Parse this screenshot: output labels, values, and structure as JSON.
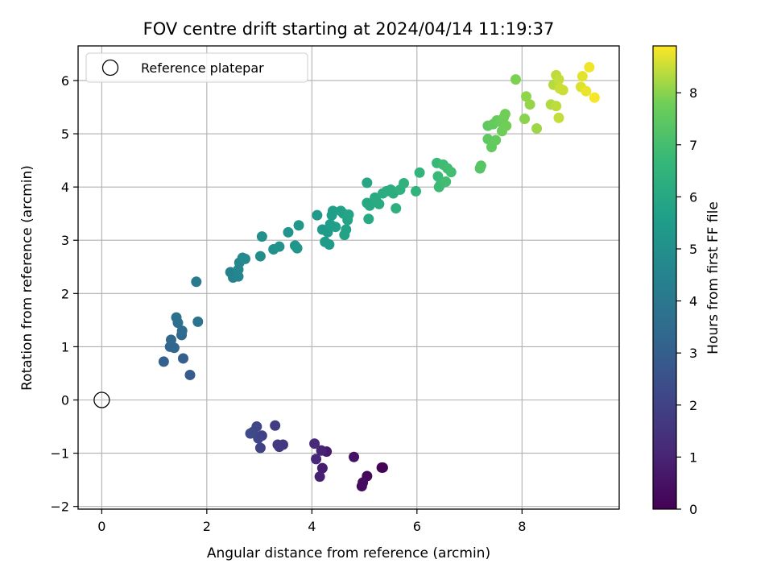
{
  "chart_data": {
    "type": "scatter",
    "title": "FOV centre drift starting at 2024/04/14 11:19:37",
    "xlabel": "Angular distance from reference (arcmin)",
    "ylabel": "Rotation from reference (arcmin)",
    "xlim": [
      -0.45,
      9.85
    ],
    "ylim": [
      -2.05,
      6.65
    ],
    "xticks": [
      0,
      2,
      4,
      6,
      8
    ],
    "yticks": [
      -2,
      -1,
      0,
      1,
      2,
      3,
      4,
      5,
      6
    ],
    "grid": true,
    "colormap": "viridis",
    "colorbar": {
      "label": "Hours from first FF file",
      "range": [
        0,
        8.9
      ],
      "ticks": [
        0,
        1,
        2,
        3,
        4,
        5,
        6,
        7,
        8
      ]
    },
    "legend": {
      "placement": "top-left",
      "entries": [
        "Reference platepar"
      ]
    },
    "reference_point": {
      "x": 0,
      "y": 0
    },
    "points": [
      {
        "x": 5.35,
        "y": -1.27,
        "t": 0.05
      },
      {
        "x": 5.33,
        "y": -1.27,
        "t": 0.1
      },
      {
        "x": 5.05,
        "y": -1.43,
        "t": 0.2
      },
      {
        "x": 4.95,
        "y": -1.62,
        "t": 0.3
      },
      {
        "x": 4.97,
        "y": -1.55,
        "t": 0.35
      },
      {
        "x": 4.8,
        "y": -1.07,
        "t": 0.5
      },
      {
        "x": 4.28,
        "y": -0.97,
        "t": 0.7
      },
      {
        "x": 4.2,
        "y": -1.28,
        "t": 0.8
      },
      {
        "x": 4.15,
        "y": -1.44,
        "t": 0.9
      },
      {
        "x": 4.18,
        "y": -0.95,
        "t": 1.0
      },
      {
        "x": 4.08,
        "y": -1.11,
        "t": 1.1
      },
      {
        "x": 4.05,
        "y": -0.82,
        "t": 1.2
      },
      {
        "x": 3.45,
        "y": -0.84,
        "t": 1.6
      },
      {
        "x": 3.38,
        "y": -0.88,
        "t": 1.7
      },
      {
        "x": 3.35,
        "y": -0.84,
        "t": 1.75
      },
      {
        "x": 3.3,
        "y": -0.48,
        "t": 1.8
      },
      {
        "x": 3.05,
        "y": -0.67,
        "t": 1.9
      },
      {
        "x": 3.02,
        "y": -0.9,
        "t": 2.0
      },
      {
        "x": 2.98,
        "y": -0.72,
        "t": 2.1
      },
      {
        "x": 2.95,
        "y": -0.5,
        "t": 2.15
      },
      {
        "x": 2.88,
        "y": -0.6,
        "t": 2.2
      },
      {
        "x": 2.83,
        "y": -0.63,
        "t": 2.3
      },
      {
        "x": 1.68,
        "y": 0.47,
        "t": 2.9
      },
      {
        "x": 1.55,
        "y": 0.78,
        "t": 3.0
      },
      {
        "x": 1.18,
        "y": 0.72,
        "t": 3.1
      },
      {
        "x": 1.3,
        "y": 1.0,
        "t": 3.2
      },
      {
        "x": 1.38,
        "y": 0.98,
        "t": 3.3
      },
      {
        "x": 1.32,
        "y": 1.13,
        "t": 3.35
      },
      {
        "x": 1.52,
        "y": 1.22,
        "t": 3.4
      },
      {
        "x": 1.53,
        "y": 1.3,
        "t": 3.5
      },
      {
        "x": 1.45,
        "y": 1.45,
        "t": 3.6
      },
      {
        "x": 1.42,
        "y": 1.55,
        "t": 3.7
      },
      {
        "x": 1.83,
        "y": 1.47,
        "t": 3.8
      },
      {
        "x": 1.8,
        "y": 2.22,
        "t": 4.1
      },
      {
        "x": 2.45,
        "y": 2.4,
        "t": 4.4
      },
      {
        "x": 2.5,
        "y": 2.3,
        "t": 4.5
      },
      {
        "x": 2.6,
        "y": 2.32,
        "t": 4.55
      },
      {
        "x": 2.6,
        "y": 2.45,
        "t": 4.6
      },
      {
        "x": 2.62,
        "y": 2.58,
        "t": 4.65
      },
      {
        "x": 2.68,
        "y": 2.67,
        "t": 4.7
      },
      {
        "x": 2.73,
        "y": 2.65,
        "t": 4.75
      },
      {
        "x": 3.02,
        "y": 2.7,
        "t": 4.9
      },
      {
        "x": 3.05,
        "y": 3.07,
        "t": 5.0
      },
      {
        "x": 3.27,
        "y": 2.83,
        "t": 5.05
      },
      {
        "x": 3.38,
        "y": 2.88,
        "t": 5.1
      },
      {
        "x": 3.55,
        "y": 3.15,
        "t": 5.15
      },
      {
        "x": 3.68,
        "y": 2.9,
        "t": 5.2
      },
      {
        "x": 3.72,
        "y": 2.85,
        "t": 5.25
      },
      {
        "x": 3.75,
        "y": 3.28,
        "t": 5.3
      },
      {
        "x": 4.1,
        "y": 3.47,
        "t": 5.35
      },
      {
        "x": 4.2,
        "y": 3.2,
        "t": 5.4
      },
      {
        "x": 4.25,
        "y": 2.97,
        "t": 5.45
      },
      {
        "x": 4.33,
        "y": 2.92,
        "t": 5.5
      },
      {
        "x": 4.3,
        "y": 3.15,
        "t": 5.5
      },
      {
        "x": 4.35,
        "y": 3.3,
        "t": 5.55
      },
      {
        "x": 4.38,
        "y": 3.47,
        "t": 5.6
      },
      {
        "x": 4.4,
        "y": 3.55,
        "t": 5.6
      },
      {
        "x": 4.45,
        "y": 3.25,
        "t": 5.65
      },
      {
        "x": 4.55,
        "y": 3.55,
        "t": 5.7
      },
      {
        "x": 4.6,
        "y": 3.5,
        "t": 5.7
      },
      {
        "x": 4.62,
        "y": 3.1,
        "t": 5.75
      },
      {
        "x": 4.65,
        "y": 3.2,
        "t": 5.75
      },
      {
        "x": 4.68,
        "y": 3.38,
        "t": 5.8
      },
      {
        "x": 4.7,
        "y": 3.48,
        "t": 5.8
      },
      {
        "x": 5.05,
        "y": 4.08,
        "t": 5.9
      },
      {
        "x": 5.05,
        "y": 3.7,
        "t": 5.95
      },
      {
        "x": 5.1,
        "y": 3.65,
        "t": 6.0
      },
      {
        "x": 5.08,
        "y": 3.4,
        "t": 6.0
      },
      {
        "x": 5.2,
        "y": 3.8,
        "t": 6.05
      },
      {
        "x": 5.22,
        "y": 3.75,
        "t": 6.1
      },
      {
        "x": 5.28,
        "y": 3.68,
        "t": 6.1
      },
      {
        "x": 5.35,
        "y": 3.88,
        "t": 6.15
      },
      {
        "x": 5.42,
        "y": 3.92,
        "t": 6.2
      },
      {
        "x": 5.5,
        "y": 3.95,
        "t": 6.2
      },
      {
        "x": 5.55,
        "y": 3.88,
        "t": 6.25
      },
      {
        "x": 5.6,
        "y": 3.6,
        "t": 6.3
      },
      {
        "x": 5.68,
        "y": 3.95,
        "t": 6.35
      },
      {
        "x": 5.75,
        "y": 4.07,
        "t": 6.4
      },
      {
        "x": 5.98,
        "y": 3.92,
        "t": 6.5
      },
      {
        "x": 6.05,
        "y": 4.27,
        "t": 6.55
      },
      {
        "x": 6.38,
        "y": 4.45,
        "t": 6.7
      },
      {
        "x": 6.4,
        "y": 4.2,
        "t": 6.75
      },
      {
        "x": 6.42,
        "y": 4.0,
        "t": 6.8
      },
      {
        "x": 6.45,
        "y": 4.05,
        "t": 6.8
      },
      {
        "x": 6.5,
        "y": 4.42,
        "t": 6.85
      },
      {
        "x": 6.55,
        "y": 4.1,
        "t": 6.9
      },
      {
        "x": 6.58,
        "y": 4.35,
        "t": 6.9
      },
      {
        "x": 6.65,
        "y": 4.28,
        "t": 6.95
      },
      {
        "x": 7.2,
        "y": 4.35,
        "t": 7.3
      },
      {
        "x": 7.22,
        "y": 4.4,
        "t": 7.35
      },
      {
        "x": 7.35,
        "y": 5.15,
        "t": 7.5
      },
      {
        "x": 7.35,
        "y": 4.9,
        "t": 7.5
      },
      {
        "x": 7.42,
        "y": 4.75,
        "t": 7.55
      },
      {
        "x": 7.45,
        "y": 5.18,
        "t": 7.6
      },
      {
        "x": 7.5,
        "y": 4.88,
        "t": 7.6
      },
      {
        "x": 7.52,
        "y": 5.25,
        "t": 7.65
      },
      {
        "x": 7.6,
        "y": 5.22,
        "t": 7.7
      },
      {
        "x": 7.62,
        "y": 5.05,
        "t": 7.75
      },
      {
        "x": 7.65,
        "y": 5.3,
        "t": 7.75
      },
      {
        "x": 7.68,
        "y": 5.37,
        "t": 7.8
      },
      {
        "x": 7.7,
        "y": 5.15,
        "t": 7.8
      },
      {
        "x": 7.88,
        "y": 6.02,
        "t": 7.9
      },
      {
        "x": 8.05,
        "y": 5.28,
        "t": 8.0
      },
      {
        "x": 8.08,
        "y": 5.7,
        "t": 8.05
      },
      {
        "x": 8.15,
        "y": 5.55,
        "t": 8.1
      },
      {
        "x": 8.28,
        "y": 5.1,
        "t": 8.15
      },
      {
        "x": 8.55,
        "y": 5.55,
        "t": 8.3
      },
      {
        "x": 8.6,
        "y": 5.92,
        "t": 8.35
      },
      {
        "x": 8.65,
        "y": 6.1,
        "t": 8.4
      },
      {
        "x": 8.65,
        "y": 5.52,
        "t": 8.4
      },
      {
        "x": 8.7,
        "y": 6.02,
        "t": 8.45
      },
      {
        "x": 8.7,
        "y": 5.3,
        "t": 8.45
      },
      {
        "x": 8.72,
        "y": 5.85,
        "t": 8.5
      },
      {
        "x": 8.78,
        "y": 5.82,
        "t": 8.5
      },
      {
        "x": 9.12,
        "y": 5.88,
        "t": 8.65
      },
      {
        "x": 9.15,
        "y": 6.08,
        "t": 8.7
      },
      {
        "x": 9.22,
        "y": 5.8,
        "t": 8.75
      },
      {
        "x": 9.28,
        "y": 6.25,
        "t": 8.8
      },
      {
        "x": 9.38,
        "y": 5.68,
        "t": 8.85
      }
    ]
  }
}
